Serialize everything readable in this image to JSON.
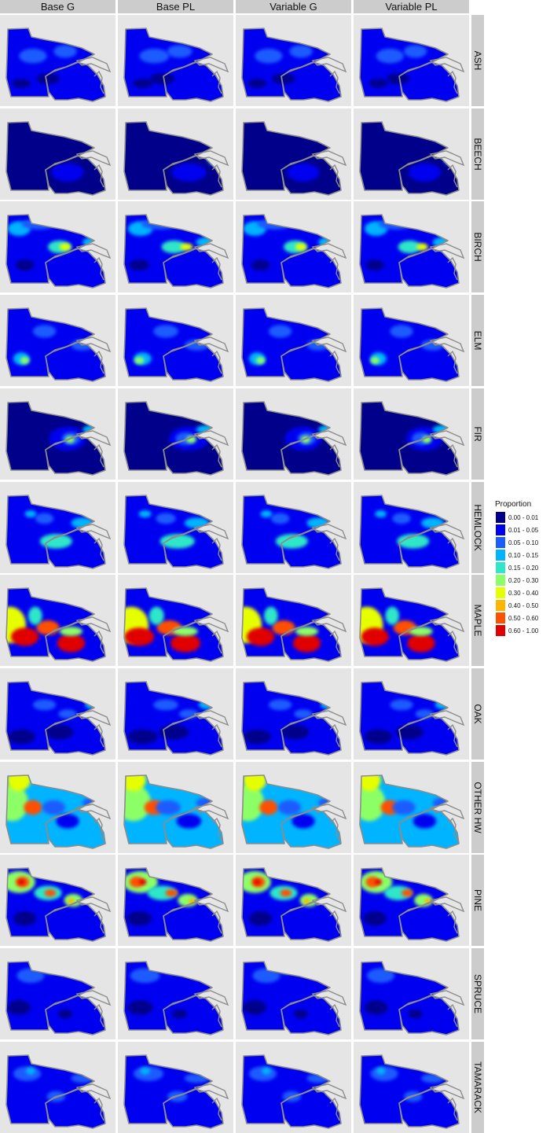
{
  "columns": [
    "Base G",
    "Base PL",
    "Variable G",
    "Variable PL"
  ],
  "rows": [
    "ASH",
    "BEECH",
    "BIRCH",
    "ELM",
    "FIR",
    "HEMLOCK",
    "MAPLE",
    "OAK",
    "OTHER HW",
    "PINE",
    "SPRUCE",
    "TAMARACK"
  ],
  "legend": {
    "title": "Proportion",
    "items": [
      {
        "label": "0.00 - 0.01",
        "color": "#00008b"
      },
      {
        "label": "0.01 - 0.05",
        "color": "#0000f0"
      },
      {
        "label": "0.05 - 0.10",
        "color": "#1a5cff"
      },
      {
        "label": "0.10 - 0.15",
        "color": "#00b4ff"
      },
      {
        "label": "0.15 - 0.20",
        "color": "#2ee6c8"
      },
      {
        "label": "0.20 - 0.30",
        "color": "#8cff66"
      },
      {
        "label": "0.30 - 0.40",
        "color": "#e6ff00"
      },
      {
        "label": "0.40 - 0.50",
        "color": "#ffb400"
      },
      {
        "label": "0.50 - 0.60",
        "color": "#ff5000"
      },
      {
        "label": "0.60 - 1.00",
        "color": "#e00000"
      }
    ]
  },
  "map_style": {
    "panel_background": "#e5e5e5",
    "border_color": "#8c8c8c",
    "base_class_color": "#0000f0"
  },
  "maps": {
    "ASH": {
      "base": 1,
      "blobs": [
        [
          0.3,
          0.45,
          0.12,
          0.08,
          2
        ],
        [
          0.55,
          0.4,
          0.1,
          0.07,
          2
        ],
        [
          0.2,
          0.75,
          0.08,
          0.05,
          0
        ],
        [
          0.4,
          0.7,
          0.1,
          0.06,
          0
        ]
      ]
    },
    "BEECH": {
      "base": 0,
      "blobs": [
        [
          0.6,
          0.7,
          0.14,
          0.1,
          1
        ],
        [
          0.85,
          0.55,
          0.06,
          0.08,
          2
        ],
        [
          0.88,
          0.6,
          0.03,
          0.05,
          4
        ]
      ]
    },
    "BIRCH": {
      "base": 1,
      "blobs": [
        [
          0.18,
          0.3,
          0.1,
          0.08,
          3
        ],
        [
          0.5,
          0.5,
          0.1,
          0.07,
          4
        ],
        [
          0.58,
          0.5,
          0.05,
          0.04,
          6
        ],
        [
          0.8,
          0.45,
          0.1,
          0.06,
          3
        ],
        [
          0.35,
          0.25,
          0.15,
          0.06,
          2
        ],
        [
          0.2,
          0.7,
          0.08,
          0.06,
          0
        ]
      ]
    },
    "ELM": {
      "base": 1,
      "blobs": [
        [
          0.2,
          0.7,
          0.07,
          0.07,
          3
        ],
        [
          0.2,
          0.72,
          0.04,
          0.04,
          5
        ],
        [
          0.4,
          0.4,
          0.1,
          0.07,
          2
        ],
        [
          0.7,
          0.55,
          0.1,
          0.06,
          2
        ]
      ]
    },
    "FIR": {
      "base": 0,
      "blobs": [
        [
          0.6,
          0.55,
          0.16,
          0.13,
          1
        ],
        [
          0.6,
          0.55,
          0.08,
          0.07,
          2
        ],
        [
          0.62,
          0.56,
          0.04,
          0.04,
          5
        ],
        [
          0.8,
          0.45,
          0.1,
          0.05,
          3
        ],
        [
          0.9,
          0.4,
          0.06,
          0.04,
          4
        ]
      ]
    },
    "HEMLOCK": {
      "base": 1,
      "blobs": [
        [
          0.5,
          0.65,
          0.14,
          0.08,
          4
        ],
        [
          0.7,
          0.45,
          0.1,
          0.06,
          3
        ],
        [
          0.4,
          0.4,
          0.08,
          0.06,
          2
        ],
        [
          0.25,
          0.35,
          0.05,
          0.04,
          3
        ]
      ]
    },
    "MAPLE": {
      "base": 1,
      "blobs": [
        [
          0.1,
          0.55,
          0.14,
          0.2,
          6
        ],
        [
          0.2,
          0.68,
          0.12,
          0.1,
          9
        ],
        [
          0.43,
          0.58,
          0.1,
          0.08,
          8
        ],
        [
          0.6,
          0.75,
          0.12,
          0.1,
          9
        ],
        [
          0.32,
          0.45,
          0.06,
          0.1,
          4
        ],
        [
          0.6,
          0.62,
          0.1,
          0.05,
          5
        ]
      ]
    },
    "OAK": {
      "base": 1,
      "blobs": [
        [
          0.2,
          0.75,
          0.12,
          0.08,
          0
        ],
        [
          0.5,
          0.7,
          0.12,
          0.08,
          0
        ],
        [
          0.4,
          0.4,
          0.1,
          0.06,
          2
        ],
        [
          0.8,
          0.4,
          0.08,
          0.05,
          3
        ],
        [
          0.6,
          0.5,
          0.08,
          0.05,
          2
        ]
      ]
    },
    "OTHER HW": {
      "base": 3,
      "blobs": [
        [
          0.12,
          0.45,
          0.14,
          0.2,
          5
        ],
        [
          0.15,
          0.2,
          0.1,
          0.12,
          6
        ],
        [
          0.3,
          0.5,
          0.08,
          0.08,
          8
        ],
        [
          0.45,
          0.5,
          0.1,
          0.08,
          2
        ],
        [
          0.6,
          0.65,
          0.1,
          0.08,
          1
        ],
        [
          0.8,
          0.45,
          0.1,
          0.06,
          2
        ]
      ]
    },
    "PINE": {
      "base": 1,
      "blobs": [
        [
          0.18,
          0.3,
          0.14,
          0.12,
          5
        ],
        [
          0.18,
          0.3,
          0.06,
          0.06,
          8
        ],
        [
          0.2,
          0.3,
          0.03,
          0.03,
          9
        ],
        [
          0.4,
          0.42,
          0.12,
          0.08,
          4
        ],
        [
          0.45,
          0.42,
          0.05,
          0.04,
          8
        ],
        [
          0.62,
          0.5,
          0.08,
          0.07,
          5
        ],
        [
          0.63,
          0.51,
          0.03,
          0.03,
          7
        ],
        [
          0.2,
          0.7,
          0.1,
          0.08,
          0
        ]
      ]
    },
    "SPRUCE": {
      "base": 1,
      "blobs": [
        [
          0.45,
          0.2,
          0.08,
          0.08,
          4
        ],
        [
          0.25,
          0.3,
          0.12,
          0.08,
          2
        ],
        [
          0.18,
          0.65,
          0.1,
          0.08,
          0
        ],
        [
          0.55,
          0.72,
          0.06,
          0.05,
          0
        ]
      ]
    },
    "TAMARACK": {
      "base": 1,
      "blobs": [
        [
          0.25,
          0.35,
          0.12,
          0.08,
          2
        ],
        [
          0.25,
          0.32,
          0.04,
          0.04,
          3
        ],
        [
          0.5,
          0.6,
          0.08,
          0.06,
          2
        ],
        [
          0.7,
          0.4,
          0.1,
          0.05,
          2
        ]
      ]
    }
  }
}
